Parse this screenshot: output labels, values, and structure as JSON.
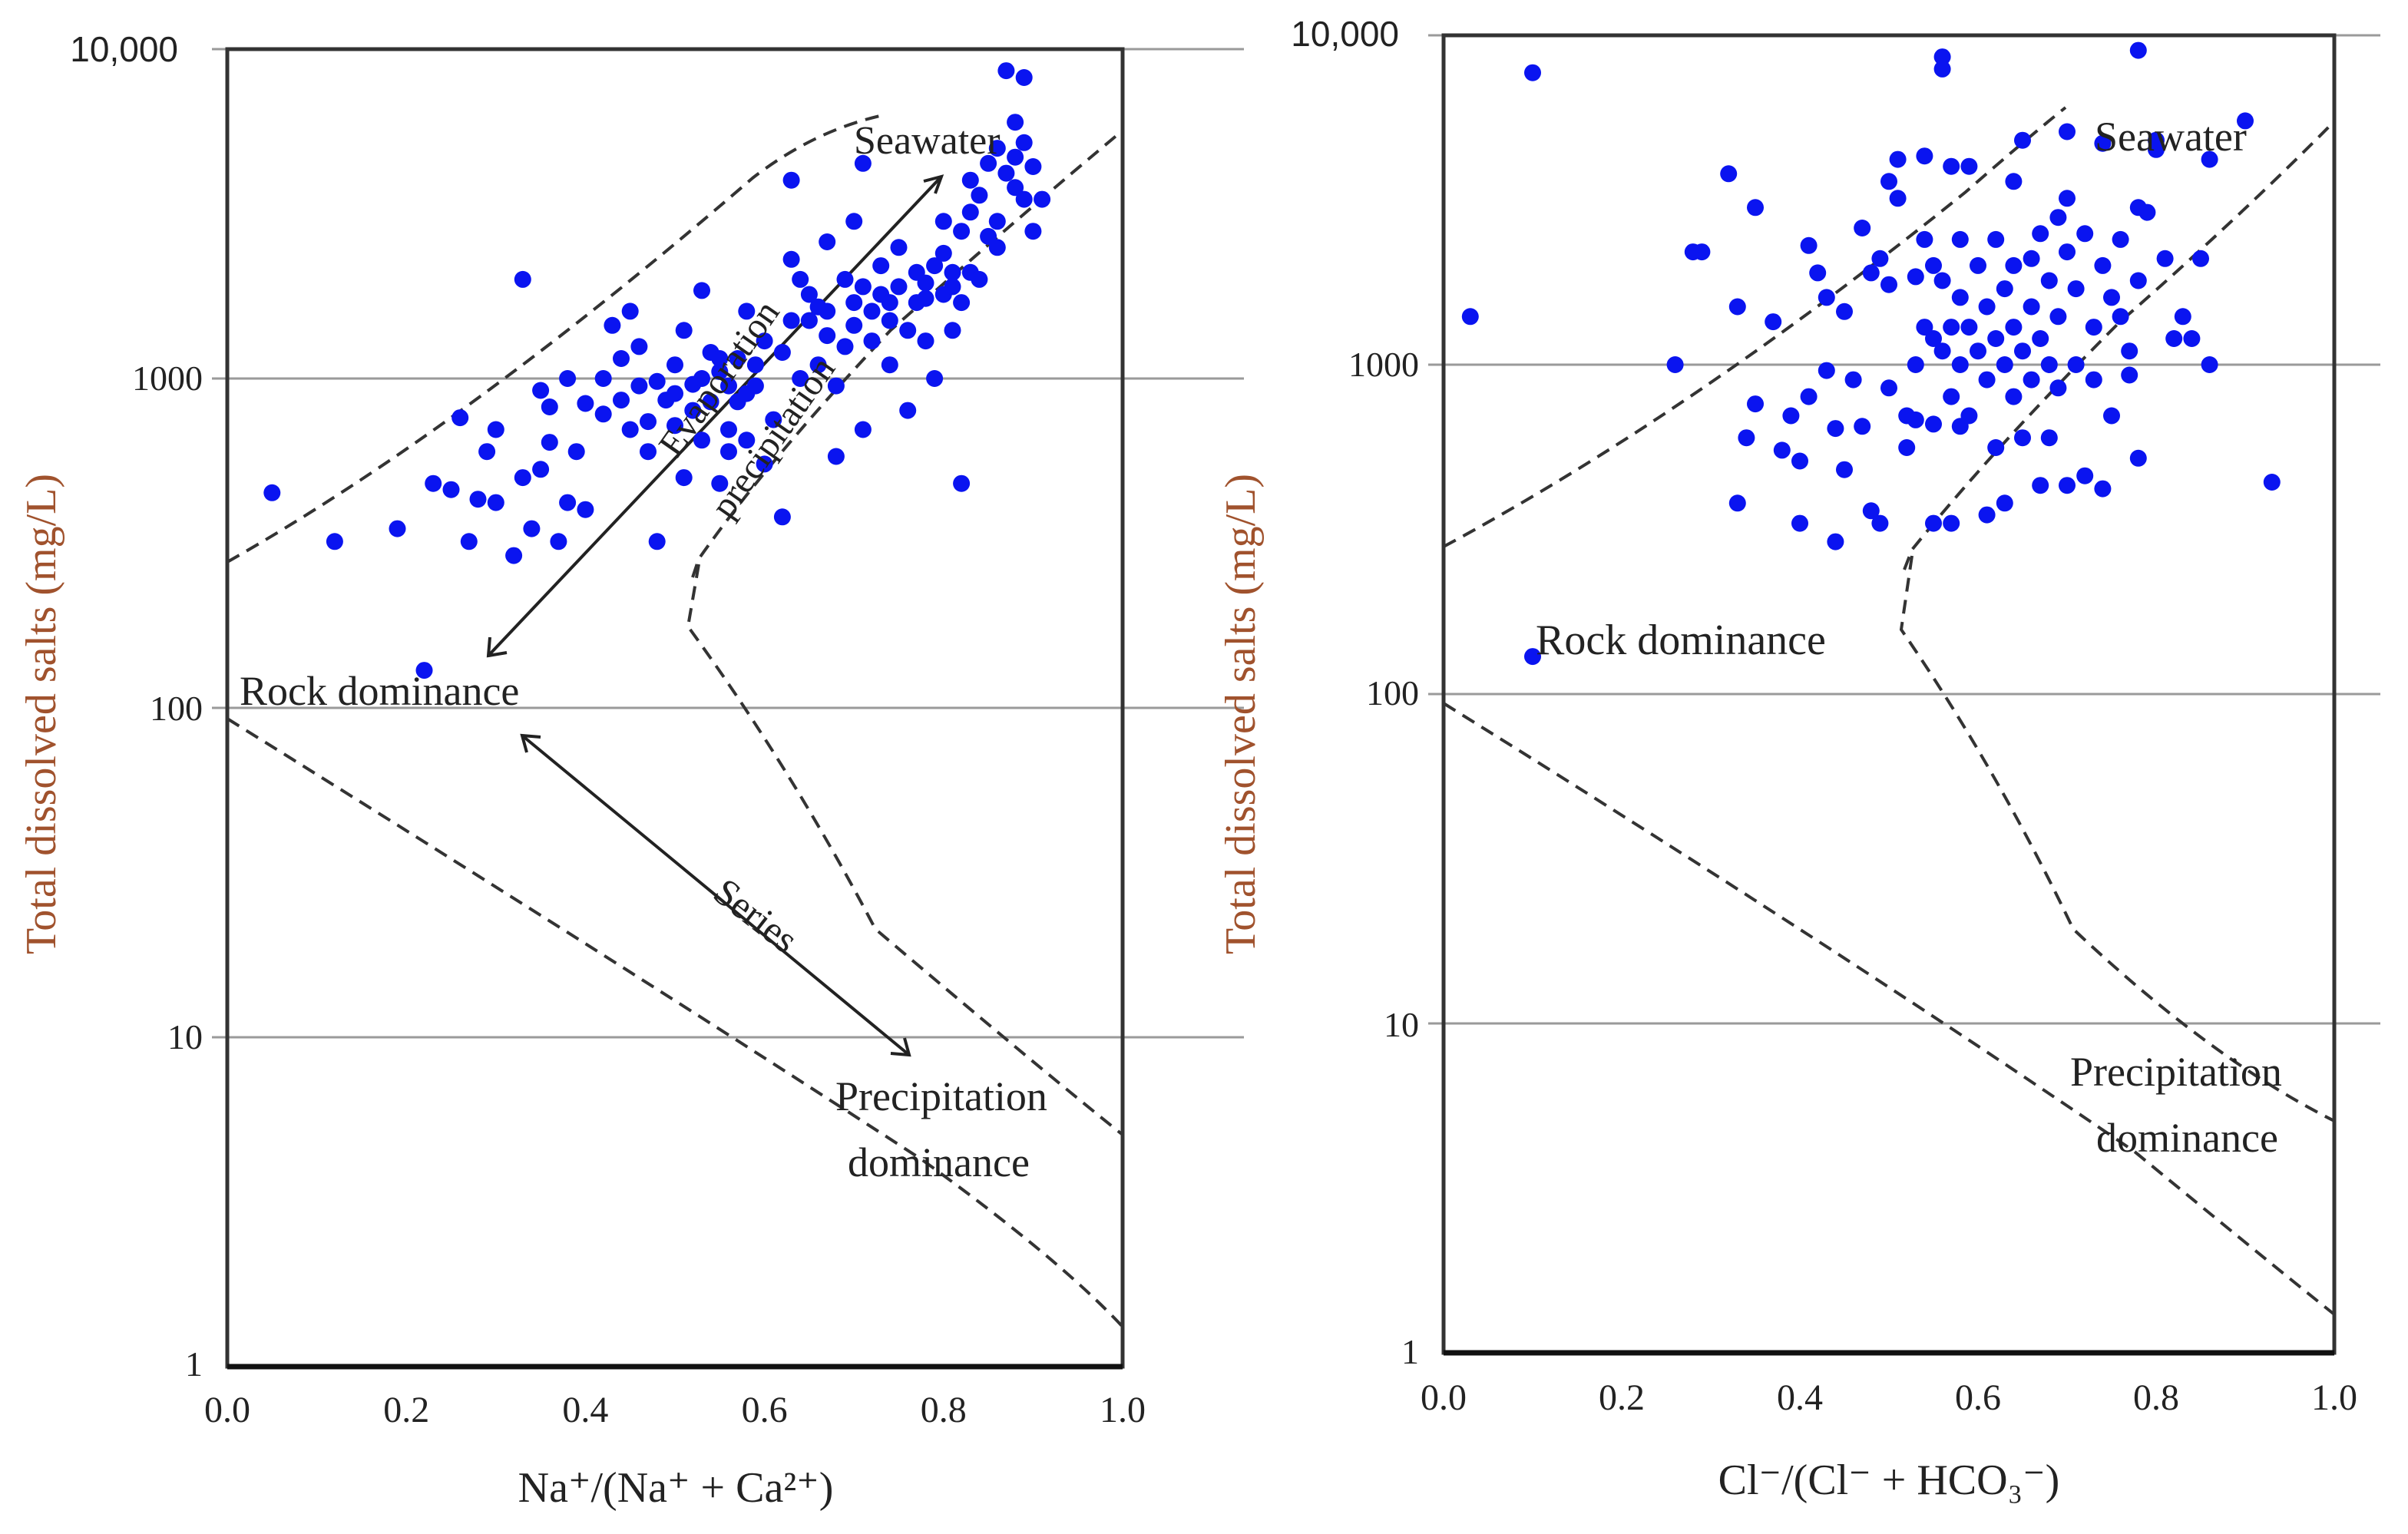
{
  "colors": {
    "points": "#0a14f0",
    "axis": "#333333",
    "axis_label": "#a0522d",
    "grid": "#9a9a9a",
    "text": "#222222"
  },
  "chart_data": [
    {
      "type": "scatter",
      "id": "left",
      "xlabel": "Na⁺/(Na⁺ + Ca²⁺)",
      "ylabel": "Total dissolved salts (mg/L)",
      "xlim": [
        0,
        1
      ],
      "ylim": [
        1,
        10000
      ],
      "y_scale": "log",
      "x_ticks": [
        "0.0",
        "0.2",
        "0.4",
        "0.6",
        "0.8",
        "1.0"
      ],
      "y_ticks": [
        "10,000",
        "1000",
        "100",
        "10",
        "1"
      ],
      "grid": "horizontal",
      "annotations": {
        "seawater": "Seawater",
        "rock": "Rock dominance",
        "precip_1": "Precipitation",
        "precip_2": "dominance",
        "evaporation": "Evaporation",
        "precipitation": "precipitation",
        "series": "Series"
      },
      "points": [
        [
          0.05,
          450
        ],
        [
          0.12,
          320
        ],
        [
          0.19,
          350
        ],
        [
          0.22,
          130
        ],
        [
          0.23,
          480
        ],
        [
          0.25,
          460
        ],
        [
          0.26,
          760
        ],
        [
          0.27,
          320
        ],
        [
          0.28,
          430
        ],
        [
          0.29,
          600
        ],
        [
          0.3,
          700
        ],
        [
          0.3,
          420
        ],
        [
          0.32,
          290
        ],
        [
          0.33,
          2000
        ],
        [
          0.33,
          500
        ],
        [
          0.34,
          350
        ],
        [
          0.35,
          920
        ],
        [
          0.35,
          530
        ],
        [
          0.36,
          640
        ],
        [
          0.36,
          820
        ],
        [
          0.37,
          320
        ],
        [
          0.38,
          420
        ],
        [
          0.38,
          1000
        ],
        [
          0.39,
          600
        ],
        [
          0.4,
          840
        ],
        [
          0.4,
          400
        ],
        [
          0.42,
          1000
        ],
        [
          0.42,
          780
        ],
        [
          0.43,
          1450
        ],
        [
          0.44,
          1150
        ],
        [
          0.44,
          860
        ],
        [
          0.45,
          1600
        ],
        [
          0.45,
          700
        ],
        [
          0.46,
          1250
        ],
        [
          0.46,
          950
        ],
        [
          0.47,
          740
        ],
        [
          0.47,
          600
        ],
        [
          0.48,
          320
        ],
        [
          0.48,
          980
        ],
        [
          0.49,
          860
        ],
        [
          0.5,
          1100
        ],
        [
          0.5,
          720
        ],
        [
          0.51,
          1400
        ],
        [
          0.51,
          500
        ],
        [
          0.52,
          960
        ],
        [
          0.52,
          800
        ],
        [
          0.53,
          1850
        ],
        [
          0.53,
          1000
        ],
        [
          0.53,
          650
        ],
        [
          0.54,
          1200
        ],
        [
          0.54,
          850
        ],
        [
          0.55,
          480
        ],
        [
          0.55,
          1050
        ],
        [
          0.56,
          950
        ],
        [
          0.56,
          700
        ],
        [
          0.57,
          1150
        ],
        [
          0.57,
          850
        ],
        [
          0.58,
          1600
        ],
        [
          0.58,
          650
        ],
        [
          0.59,
          1100
        ],
        [
          0.59,
          950
        ],
        [
          0.6,
          550
        ],
        [
          0.6,
          1300
        ],
        [
          0.61,
          750
        ],
        [
          0.62,
          1200
        ],
        [
          0.62,
          380
        ],
        [
          0.63,
          2300
        ],
        [
          0.63,
          1500
        ],
        [
          0.64,
          1000
        ],
        [
          0.65,
          1500
        ],
        [
          0.66,
          1650
        ],
        [
          0.66,
          1100
        ],
        [
          0.67,
          1350
        ],
        [
          0.67,
          2600
        ],
        [
          0.68,
          950
        ],
        [
          0.68,
          580
        ],
        [
          0.69,
          2000
        ],
        [
          0.69,
          1250
        ],
        [
          0.7,
          1700
        ],
        [
          0.7,
          1450
        ],
        [
          0.7,
          3000
        ],
        [
          0.71,
          700
        ],
        [
          0.71,
          1900
        ],
        [
          0.72,
          1300
        ],
        [
          0.72,
          1600
        ],
        [
          0.73,
          2200
        ],
        [
          0.73,
          1800
        ],
        [
          0.74,
          1500
        ],
        [
          0.74,
          1100
        ],
        [
          0.75,
          1900
        ],
        [
          0.75,
          2500
        ],
        [
          0.76,
          1400
        ],
        [
          0.76,
          800
        ],
        [
          0.77,
          2100
        ],
        [
          0.77,
          1700
        ],
        [
          0.78,
          1950
        ],
        [
          0.78,
          1300
        ],
        [
          0.79,
          1000
        ],
        [
          0.79,
          2200
        ],
        [
          0.8,
          2400
        ],
        [
          0.8,
          1800
        ],
        [
          0.8,
          3000
        ],
        [
          0.81,
          1900
        ],
        [
          0.81,
          1400
        ],
        [
          0.82,
          2800
        ],
        [
          0.82,
          480
        ],
        [
          0.82,
          1700
        ],
        [
          0.83,
          4000
        ],
        [
          0.83,
          3200
        ],
        [
          0.83,
          2100
        ],
        [
          0.84,
          2000
        ],
        [
          0.84,
          3600
        ],
        [
          0.85,
          2700
        ],
        [
          0.85,
          4500
        ],
        [
          0.86,
          3000
        ],
        [
          0.86,
          5000
        ],
        [
          0.86,
          2500
        ],
        [
          0.87,
          8600
        ],
        [
          0.87,
          4200
        ],
        [
          0.88,
          3800
        ],
        [
          0.88,
          6000
        ],
        [
          0.88,
          4700
        ],
        [
          0.89,
          8200
        ],
        [
          0.89,
          3500
        ],
        [
          0.89,
          5200
        ],
        [
          0.9,
          4400
        ],
        [
          0.9,
          2800
        ],
        [
          0.91,
          3500
        ],
        [
          0.63,
          4000
        ],
        [
          0.71,
          4500
        ],
        [
          0.64,
          2000
        ],
        [
          0.65,
          1800
        ],
        [
          0.67,
          1600
        ],
        [
          0.56,
          600
        ],
        [
          0.58,
          900
        ],
        [
          0.74,
          1700
        ],
        [
          0.81,
          2100
        ],
        [
          0.78,
          1750
        ],
        [
          0.55,
          1150
        ],
        [
          0.5,
          900
        ]
      ]
    },
    {
      "type": "scatter",
      "id": "right",
      "xlabel": "Cl⁻/(Cl⁻ + HCO₃⁻)",
      "ylabel": "Total dissolved salts (mg/L)",
      "xlim": [
        0,
        1
      ],
      "ylim": [
        1,
        10000
      ],
      "y_scale": "log",
      "x_ticks": [
        "0.0",
        "0.2",
        "0.4",
        "0.6",
        "0.8",
        "1.0"
      ],
      "y_ticks": [
        "10,000",
        "1000",
        "100",
        "10",
        "1"
      ],
      "grid": "horizontal",
      "annotations": {
        "seawater": "Seawater",
        "rock": "Rock dominance",
        "precip_1": "Precipitation",
        "precip_2": "dominance"
      },
      "points": [
        [
          0.03,
          1400
        ],
        [
          0.1,
          7700
        ],
        [
          0.1,
          130
        ],
        [
          0.26,
          1000
        ],
        [
          0.28,
          2200
        ],
        [
          0.29,
          2200
        ],
        [
          0.32,
          3800
        ],
        [
          0.33,
          380
        ],
        [
          0.33,
          1500
        ],
        [
          0.34,
          600
        ],
        [
          0.35,
          3000
        ],
        [
          0.35,
          760
        ],
        [
          0.37,
          1350
        ],
        [
          0.38,
          550
        ],
        [
          0.39,
          700
        ],
        [
          0.4,
          330
        ],
        [
          0.4,
          510
        ],
        [
          0.41,
          800
        ],
        [
          0.41,
          2300
        ],
        [
          0.42,
          1900
        ],
        [
          0.43,
          1600
        ],
        [
          0.43,
          960
        ],
        [
          0.44,
          290
        ],
        [
          0.44,
          640
        ],
        [
          0.45,
          1450
        ],
        [
          0.45,
          480
        ],
        [
          0.46,
          900
        ],
        [
          0.47,
          2600
        ],
        [
          0.47,
          650
        ],
        [
          0.48,
          1900
        ],
        [
          0.48,
          360
        ],
        [
          0.49,
          330
        ],
        [
          0.49,
          2100
        ],
        [
          0.5,
          3600
        ],
        [
          0.5,
          1750
        ],
        [
          0.5,
          850
        ],
        [
          0.51,
          4200
        ],
        [
          0.51,
          3200
        ],
        [
          0.52,
          700
        ],
        [
          0.52,
          560
        ],
        [
          0.53,
          1850
        ],
        [
          0.53,
          1000
        ],
        [
          0.53,
          680
        ],
        [
          0.54,
          4300
        ],
        [
          0.54,
          2400
        ],
        [
          0.54,
          1300
        ],
        [
          0.55,
          2000
        ],
        [
          0.55,
          1200
        ],
        [
          0.55,
          330
        ],
        [
          0.55,
          660
        ],
        [
          0.56,
          8600
        ],
        [
          0.56,
          7900
        ],
        [
          0.56,
          1800
        ],
        [
          0.56,
          1100
        ],
        [
          0.57,
          4000
        ],
        [
          0.57,
          1300
        ],
        [
          0.57,
          800
        ],
        [
          0.57,
          330
        ],
        [
          0.58,
          2400
        ],
        [
          0.58,
          1600
        ],
        [
          0.58,
          1000
        ],
        [
          0.58,
          650
        ],
        [
          0.59,
          4000
        ],
        [
          0.59,
          1300
        ],
        [
          0.59,
          700
        ],
        [
          0.6,
          2000
        ],
        [
          0.6,
          1100
        ],
        [
          0.61,
          1500
        ],
        [
          0.61,
          900
        ],
        [
          0.61,
          350
        ],
        [
          0.62,
          2400
        ],
        [
          0.62,
          1200
        ],
        [
          0.62,
          560
        ],
        [
          0.63,
          1700
        ],
        [
          0.63,
          1000
        ],
        [
          0.63,
          380
        ],
        [
          0.64,
          3600
        ],
        [
          0.64,
          2000
        ],
        [
          0.64,
          1300
        ],
        [
          0.64,
          800
        ],
        [
          0.65,
          4800
        ],
        [
          0.65,
          1100
        ],
        [
          0.65,
          600
        ],
        [
          0.66,
          2100
        ],
        [
          0.66,
          1500
        ],
        [
          0.66,
          900
        ],
        [
          0.67,
          2500
        ],
        [
          0.67,
          1200
        ],
        [
          0.67,
          430
        ],
        [
          0.68,
          1800
        ],
        [
          0.68,
          1000
        ],
        [
          0.68,
          600
        ],
        [
          0.69,
          2800
        ],
        [
          0.69,
          1400
        ],
        [
          0.69,
          850
        ],
        [
          0.7,
          5100
        ],
        [
          0.7,
          3200
        ],
        [
          0.7,
          2200
        ],
        [
          0.7,
          430
        ],
        [
          0.71,
          1700
        ],
        [
          0.71,
          1000
        ],
        [
          0.72,
          2500
        ],
        [
          0.72,
          460
        ],
        [
          0.73,
          1300
        ],
        [
          0.73,
          900
        ],
        [
          0.74,
          4700
        ],
        [
          0.74,
          2000
        ],
        [
          0.74,
          420
        ],
        [
          0.75,
          1600
        ],
        [
          0.75,
          700
        ],
        [
          0.76,
          2400
        ],
        [
          0.76,
          1400
        ],
        [
          0.77,
          1100
        ],
        [
          0.77,
          930
        ],
        [
          0.78,
          9000
        ],
        [
          0.78,
          3000
        ],
        [
          0.78,
          1800
        ],
        [
          0.78,
          520
        ],
        [
          0.79,
          2900
        ],
        [
          0.8,
          4800
        ],
        [
          0.8,
          4500
        ],
        [
          0.81,
          2100
        ],
        [
          0.82,
          1200
        ],
        [
          0.83,
          1400
        ],
        [
          0.84,
          1200
        ],
        [
          0.85,
          2100
        ],
        [
          0.86,
          4200
        ],
        [
          0.86,
          1000
        ],
        [
          0.9,
          5500
        ],
        [
          0.93,
          440
        ]
      ]
    }
  ]
}
